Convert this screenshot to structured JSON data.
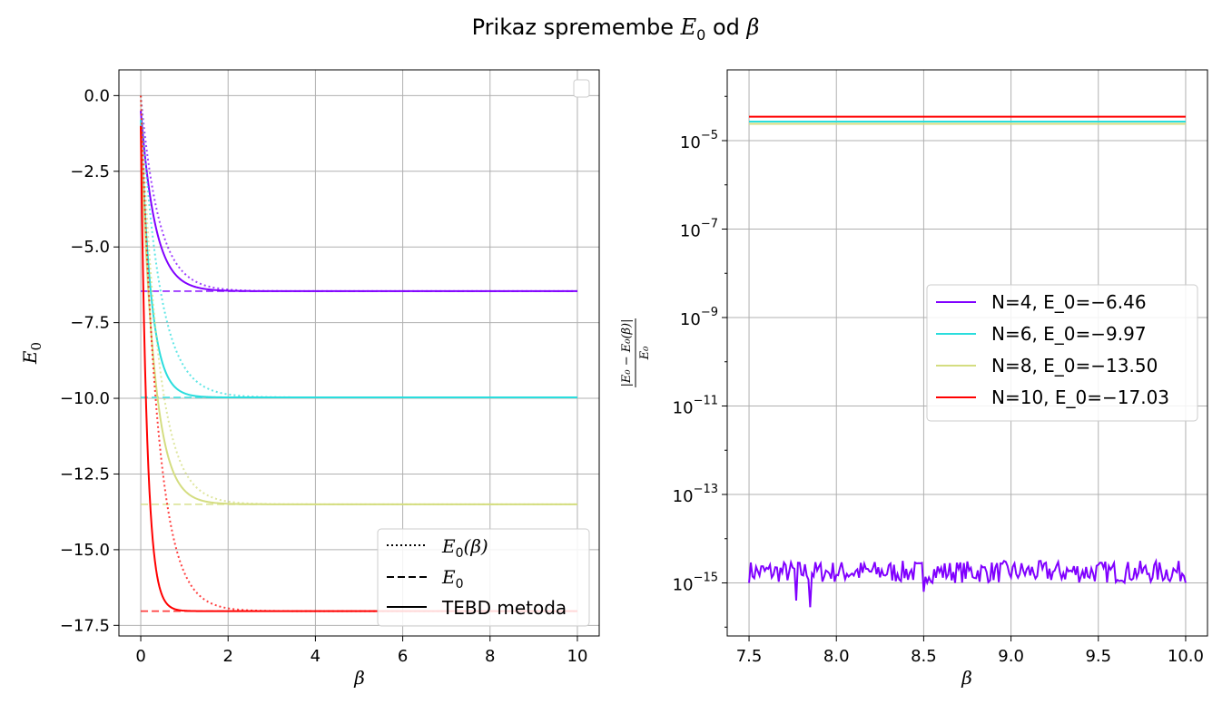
{
  "figure": {
    "title_prefix": "Prikaz spremembe ",
    "title_math": "E",
    "title_sub": "0",
    "title_mid": " od ",
    "title_beta": "β"
  },
  "colors": {
    "N4": "#8000ff",
    "N6": "#2adddd",
    "N8": "#d4dd80",
    "N10": "#ff0000"
  },
  "chart_data": [
    {
      "type": "line",
      "xlabel": "β",
      "ylabel": "E",
      "ylabel_sub": "0",
      "xlim": [
        -0.5,
        10.5
      ],
      "ylim": [
        -17.85,
        0.85
      ],
      "xticks": [
        0,
        2,
        4,
        6,
        8,
        10
      ],
      "xtick_labels": [
        "0",
        "2",
        "4",
        "6",
        "8",
        "10"
      ],
      "yticks": [
        0.0,
        -2.5,
        -5.0,
        -7.5,
        -10.0,
        -12.5,
        -15.0,
        -17.5
      ],
      "ytick_labels": [
        "0.0",
        "−2.5",
        "−5.0",
        "−7.5",
        "−10.0",
        "−12.5",
        "−15.0",
        "−17.5"
      ],
      "grid": true,
      "legend_position": "lower-right",
      "legend": [
        {
          "style": "dotted",
          "label_main": "E",
          "label_sub": "0",
          "label_rest": "(β)"
        },
        {
          "style": "dashed",
          "label_main": "E",
          "label_sub": "0",
          "label_rest": ""
        },
        {
          "style": "solid",
          "label_main": "TEBD metoda",
          "label_sub": "",
          "label_rest": ""
        }
      ],
      "series": [
        {
          "color_key": "N4",
          "E0": -6.46,
          "tebd_start": -0.5,
          "tebd_rate": 3.0,
          "exact_rate": 2.4
        },
        {
          "color_key": "N6",
          "E0": -9.97,
          "tebd_start": -0.8,
          "tebd_rate": 4.2,
          "exact_rate": 2.3
        },
        {
          "color_key": "N8",
          "E0": -13.5,
          "tebd_start": -1.0,
          "tebd_rate": 3.3,
          "exact_rate": 2.5
        },
        {
          "color_key": "N10",
          "E0": -17.03,
          "tebd_start": -1.0,
          "tebd_rate": 7.0,
          "exact_rate": 2.6
        }
      ]
    },
    {
      "type": "line",
      "yscale": "log",
      "xlabel": "β",
      "ylabel": "|E0 − E0(β)| / E0",
      "xlim": [
        7.375,
        10.125
      ],
      "ylim_log10": [
        -16.2,
        -3.4
      ],
      "xticks": [
        7.5,
        8.0,
        8.5,
        9.0,
        9.5,
        10.0
      ],
      "xtick_labels": [
        "7.5",
        "8.0",
        "8.5",
        "9.0",
        "9.5",
        "10.0"
      ],
      "yticks_log10": [
        -5,
        -7,
        -9,
        -11,
        -13,
        -15
      ],
      "ytick_labels": [
        "−5",
        "−7",
        "−9",
        "−11",
        "−13",
        "−15"
      ],
      "grid": true,
      "legend_position": "center-right",
      "series": [
        {
          "name": "N=4, E_0=−6.46",
          "color_key": "N4",
          "level_log10": -14.75,
          "noisy": true
        },
        {
          "name": "N=6, E_0=−9.97",
          "color_key": "N6",
          "level_log10": -4.57,
          "noisy": false
        },
        {
          "name": "N=8, E_0=−13.50",
          "color_key": "N8",
          "level_log10": -4.62,
          "noisy": false
        },
        {
          "name": "N=10, E_0=−17.03",
          "color_key": "N10",
          "level_log10": -4.46,
          "noisy": false
        }
      ]
    }
  ]
}
